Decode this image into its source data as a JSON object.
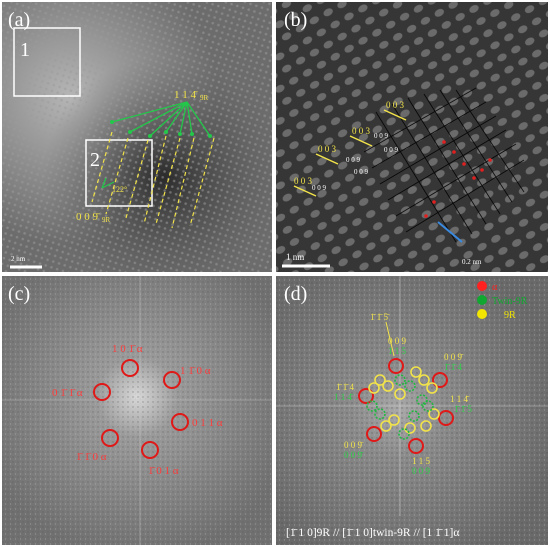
{
  "panels": {
    "a": {
      "label": "(a)",
      "box1_label": "1",
      "box2_label": "2",
      "direction_label": "1 1 4̄",
      "direction_sub": "9R",
      "angle_label": "122°",
      "plane_label": "0 0 9̄",
      "plane_sub": "9R",
      "scale_bar": "2 nm"
    },
    "b": {
      "label": "(b)",
      "plane_labels": [
        "0 0 3",
        "0 0 3",
        "0 0 3",
        "0 0 3"
      ],
      "small_labels": [
        "0 0 9",
        "0 0 9",
        "0 0 9",
        "0 0 9",
        "0 0 9"
      ],
      "measure_label": "0.2 nm",
      "scale_bar": "1 nm"
    },
    "c": {
      "label": "(c)",
      "spots": [
        {
          "text": "1 0 1̄ α"
        },
        {
          "text": "1 1̄ 0 α"
        },
        {
          "text": "0 1̄ 1̄ α"
        },
        {
          "text": "0 1 1 α"
        },
        {
          "text": "1̄ 1̄ 0 α"
        },
        {
          "text": "1̄ 0 1 α"
        }
      ]
    },
    "d": {
      "label": "(d)",
      "legend": [
        {
          "text": "α",
          "color": "#ff2020"
        },
        {
          "text": "Twin-9R",
          "color": "#10a830"
        },
        {
          "text": "9R",
          "color": "#f2e600"
        }
      ],
      "yellow_labels": [
        "1̄ 1̄ 5̄",
        "0 0 9",
        "0 0 9̄",
        "1̄ 1̄ 4",
        "1 1 4̄",
        "0 0 9̄",
        "1 1 5"
      ],
      "green_labels": [
        "1 1 5",
        "1̄ 1̄ 4",
        "1 1 4̄",
        "1̄ 1̄ 5",
        "0 0 9̄",
        "0 0 9"
      ],
      "caption": "[1̄ 1 0]9R // [1̄ 1 0]twin-9R // [1 1̄ 1]α"
    }
  }
}
